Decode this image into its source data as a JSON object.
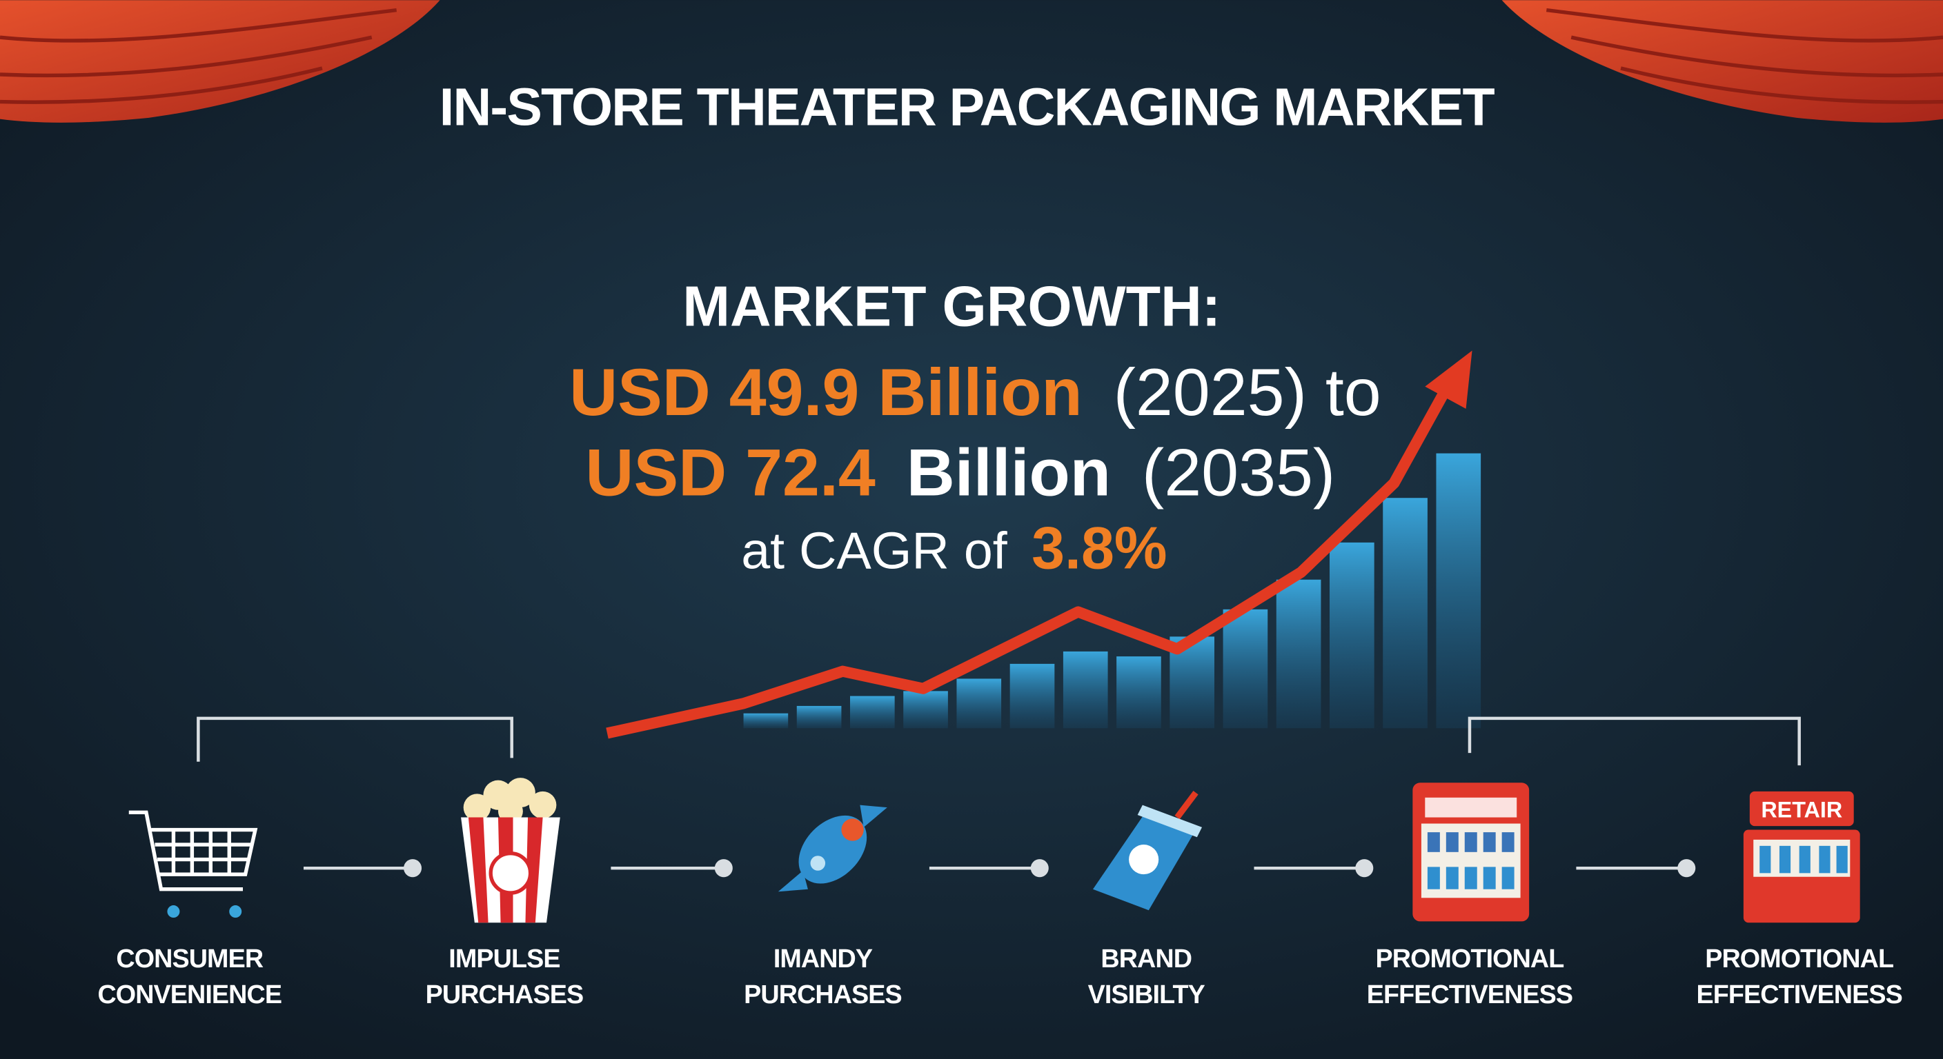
{
  "title": "IN-STORE THEATER PACKAGING MARKET",
  "growth": {
    "heading": "MARKET GROWTH:",
    "start_value": "USD 49.9 Billion",
    "start_year": "(2025) to",
    "end_value": "USD 72.4",
    "end_unit": "Billion",
    "end_year": "(2035)",
    "cagr_label": "at CAGR of",
    "cagr": "3.8%"
  },
  "items": [
    {
      "line1": "CONSUMER",
      "line2": "CONVENIENCE"
    },
    {
      "line1": "IMPULSE",
      "line2": "PURCHASES"
    },
    {
      "line1": "IMANDY",
      "line2": "PURCHASES"
    },
    {
      "line1": "BRAND",
      "line2": "VISIBILTY"
    },
    {
      "line1": "PROMOTIONAL",
      "line2": "EFFECTIVENESS"
    },
    {
      "line1": "PROMOTIONAL",
      "line2": "EFFECTIVENESS"
    }
  ],
  "retail_sign": "RETAIR"
}
